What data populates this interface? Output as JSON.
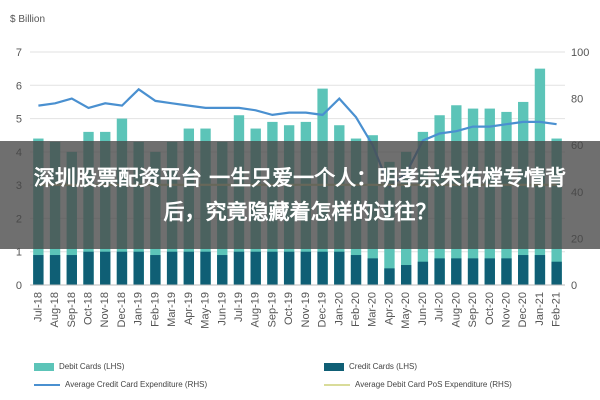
{
  "chart_data": {
    "type": "bar",
    "y_left_title": "$ Billion",
    "y_left_ticks": [
      "0",
      "1",
      "2",
      "3",
      "4",
      "5",
      "6",
      "7"
    ],
    "y_right_ticks": [
      "0",
      "20",
      "40",
      "60",
      "80",
      "100"
    ],
    "ylim_left": [
      0,
      7
    ],
    "ylim_right": [
      0,
      100
    ],
    "grid": true,
    "legend_position": "bottom",
    "categories": [
      "Jul-18",
      "Aug-18",
      "Sep-18",
      "Oct-18",
      "Nov-18",
      "Dec-18",
      "Jan-19",
      "Feb-19",
      "Mar-19",
      "Apr-19",
      "May-19",
      "Jun-19",
      "Jul-19",
      "Aug-19",
      "Sep-19",
      "Oct-19",
      "Nov-19",
      "Dec-19",
      "Jan-20",
      "Feb-20",
      "Mar-20",
      "Apr-20",
      "May-20",
      "Jun-20",
      "Jul-20",
      "Aug-20",
      "Sep-20",
      "Oct-20",
      "Nov-20",
      "Dec-20",
      "Jan-21",
      "Feb-21"
    ],
    "series": [
      {
        "name": "Debit Cards (LHS)",
        "kind": "bar",
        "axis": "left",
        "color": "#5cc4b8",
        "values": [
          4.4,
          4.3,
          4.0,
          4.6,
          4.6,
          5.0,
          4.3,
          4.0,
          4.3,
          4.7,
          4.7,
          4.3,
          5.1,
          4.7,
          4.9,
          4.8,
          4.9,
          5.9,
          4.8,
          4.4,
          4.5,
          3.7,
          4.0,
          4.6,
          5.1,
          5.4,
          5.3,
          5.3,
          5.2,
          5.5,
          6.5,
          4.4
        ]
      },
      {
        "name": "Credit Cards (LHS)",
        "kind": "bar",
        "axis": "left",
        "color": "#0f5f75",
        "values": [
          0.9,
          0.9,
          0.9,
          1.0,
          1.0,
          1.0,
          1.0,
          0.9,
          1.0,
          1.0,
          1.0,
          0.9,
          1.0,
          1.0,
          1.0,
          1.0,
          1.0,
          1.0,
          1.0,
          0.9,
          0.8,
          0.5,
          0.6,
          0.7,
          0.8,
          0.8,
          0.8,
          0.8,
          0.8,
          0.9,
          0.9,
          0.7
        ]
      },
      {
        "name": "Average Credit Card Expenditure (RHS)",
        "kind": "line",
        "axis": "right",
        "color": "#4a90d0",
        "values": [
          77,
          78,
          80,
          76,
          78,
          77,
          84,
          79,
          78,
          77,
          76,
          76,
          76,
          75,
          73,
          74,
          74,
          73,
          80,
          72,
          60,
          42,
          48,
          62,
          65,
          66,
          68,
          68,
          69,
          70,
          70,
          69
        ]
      },
      {
        "name": "Average Debit Card PoS Expenditure (RHS)",
        "kind": "line",
        "axis": "right",
        "color": "#d9dc9a",
        "values": [
          43,
          43,
          43,
          43,
          43,
          43,
          43,
          43,
          43,
          43,
          43,
          43,
          43,
          43,
          43,
          43,
          43,
          43,
          43,
          43,
          43,
          43,
          43,
          43,
          43,
          43,
          43,
          43,
          43,
          43,
          43,
          43
        ]
      }
    ]
  },
  "overlay": {
    "text": "深圳股票配资平台 一生只爱一个人：明孝宗朱佑樘专情背后，究竟隐藏着怎样的过往？"
  },
  "legend": {
    "debit": "Debit Cards (LHS)",
    "credit": "Credit Cards (LHS)",
    "avg_credit": "Average Credit Card Expenditure (RHS)",
    "avg_debit": "Average Debit Card PoS Expenditure (RHS)"
  }
}
